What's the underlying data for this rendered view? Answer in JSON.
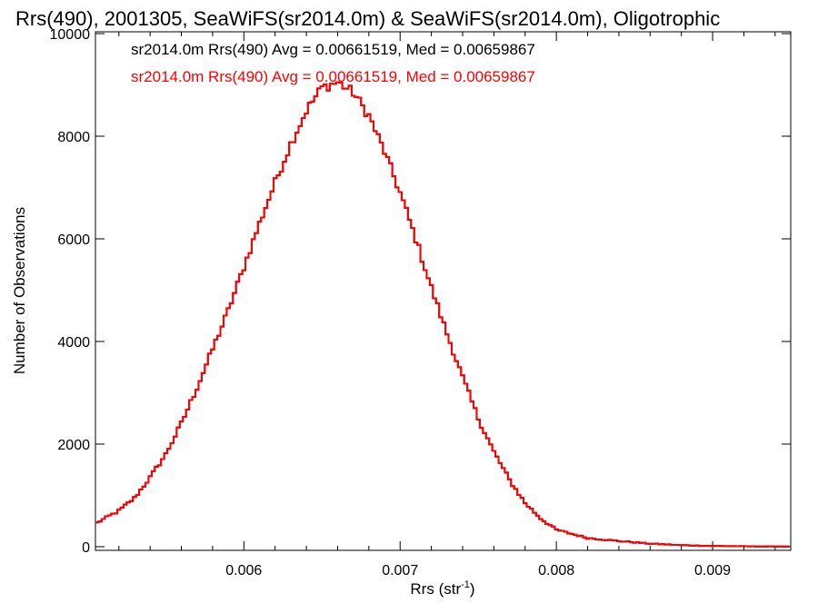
{
  "chart_data": {
    "type": "histogram",
    "title": "Rrs(490), 2001305, SeaWiFS(sr2014.0m) & SeaWiFS(sr2014.0m), Oligotrophic",
    "xlabel_main": "Rrs (str",
    "xlabel_sup": "-1",
    "xlabel_end": ")",
    "ylabel": "Number of Observations",
    "xlim": [
      0.00505,
      0.0095
    ],
    "ylim": [
      0,
      10000
    ],
    "x_ticks": [
      0.006,
      0.007,
      0.008,
      0.009
    ],
    "x_tick_labels": [
      "0.006",
      "0.007",
      "0.008",
      "0.009"
    ],
    "y_ticks": [
      0,
      2000,
      4000,
      6000,
      8000,
      10000
    ],
    "y_tick_labels": [
      "0",
      "2000",
      "4000",
      "6000",
      "8000",
      "10000"
    ],
    "bin_width": 2e-05,
    "bin_start": 0.00505,
    "grid": false,
    "series": [
      {
        "label": "sr2014.0m Rrs(490) Avg = 0.00661519, Med = 0.00659867",
        "color": "#000000",
        "control_points": [
          [
            0.00505,
            450
          ],
          [
            0.0052,
            700
          ],
          [
            0.0053,
            950
          ],
          [
            0.0054,
            1350
          ],
          [
            0.0055,
            1800
          ],
          [
            0.0056,
            2400
          ],
          [
            0.0057,
            3100
          ],
          [
            0.0058,
            3850
          ],
          [
            0.0059,
            4600
          ],
          [
            0.006,
            5450
          ],
          [
            0.0061,
            6300
          ],
          [
            0.0062,
            7100
          ],
          [
            0.0063,
            7850
          ],
          [
            0.0064,
            8500
          ],
          [
            0.0065,
            8950
          ],
          [
            0.0066,
            9050
          ],
          [
            0.0067,
            8850
          ],
          [
            0.0068,
            8400
          ],
          [
            0.0069,
            7700
          ],
          [
            0.007,
            6900
          ],
          [
            0.0071,
            6000
          ],
          [
            0.0072,
            5050
          ],
          [
            0.0073,
            4150
          ],
          [
            0.0074,
            3300
          ],
          [
            0.0075,
            2500
          ],
          [
            0.0076,
            1850
          ],
          [
            0.0077,
            1300
          ],
          [
            0.0078,
            850
          ],
          [
            0.0079,
            550
          ],
          [
            0.008,
            330
          ],
          [
            0.0082,
            170
          ],
          [
            0.0084,
            110
          ],
          [
            0.0086,
            60
          ],
          [
            0.0088,
            30
          ],
          [
            0.009,
            15
          ],
          [
            0.0092,
            8
          ],
          [
            0.0095,
            3
          ]
        ]
      },
      {
        "label": "sr2014.0m Rrs(490) Avg = 0.00661519, Med = 0.00659867",
        "color": "#ff0000",
        "control_points": [
          [
            0.00505,
            450
          ],
          [
            0.0052,
            700
          ],
          [
            0.0053,
            950
          ],
          [
            0.0054,
            1350
          ],
          [
            0.0055,
            1800
          ],
          [
            0.0056,
            2400
          ],
          [
            0.0057,
            3100
          ],
          [
            0.0058,
            3850
          ],
          [
            0.0059,
            4600
          ],
          [
            0.006,
            5450
          ],
          [
            0.0061,
            6300
          ],
          [
            0.0062,
            7100
          ],
          [
            0.0063,
            7850
          ],
          [
            0.0064,
            8500
          ],
          [
            0.0065,
            8950
          ],
          [
            0.0066,
            9050
          ],
          [
            0.0067,
            8850
          ],
          [
            0.0068,
            8400
          ],
          [
            0.0069,
            7700
          ],
          [
            0.007,
            6900
          ],
          [
            0.0071,
            6000
          ],
          [
            0.0072,
            5050
          ],
          [
            0.0073,
            4150
          ],
          [
            0.0074,
            3300
          ],
          [
            0.0075,
            2500
          ],
          [
            0.0076,
            1850
          ],
          [
            0.0077,
            1300
          ],
          [
            0.0078,
            850
          ],
          [
            0.0079,
            550
          ],
          [
            0.008,
            330
          ],
          [
            0.0082,
            170
          ],
          [
            0.0084,
            110
          ],
          [
            0.0086,
            60
          ],
          [
            0.0088,
            30
          ],
          [
            0.009,
            15
          ],
          [
            0.0092,
            8
          ],
          [
            0.0095,
            3
          ]
        ]
      }
    ]
  }
}
